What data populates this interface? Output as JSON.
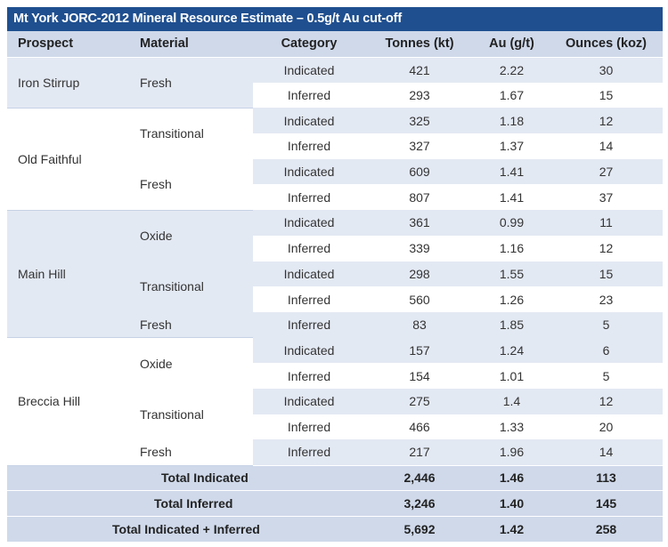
{
  "title": "Mt York JORC-2012 Mineral Resource Estimate – 0.5g/t Au cut-off",
  "headers": [
    "Prospect",
    "Material",
    "Category",
    "Tonnes (kt)",
    "Au (g/t)",
    "Ounces (koz)"
  ],
  "rows": [
    {
      "category": "Indicated",
      "tonnes": "421",
      "au": "2.22",
      "ounces": "30"
    },
    {
      "category": "Inferred",
      "tonnes": "293",
      "au": "1.67",
      "ounces": "15"
    },
    {
      "category": "Indicated",
      "tonnes": "325",
      "au": "1.18",
      "ounces": "12"
    },
    {
      "category": "Inferred",
      "tonnes": "327",
      "au": "1.37",
      "ounces": "14"
    },
    {
      "category": "Indicated",
      "tonnes": "609",
      "au": "1.41",
      "ounces": "27"
    },
    {
      "category": "Inferred",
      "tonnes": "807",
      "au": "1.41",
      "ounces": "37"
    },
    {
      "category": "Indicated",
      "tonnes": "361",
      "au": "0.99",
      "ounces": "11"
    },
    {
      "category": "Inferred",
      "tonnes": "339",
      "au": "1.16",
      "ounces": "12"
    },
    {
      "category": "Indicated",
      "tonnes": "298",
      "au": "1.55",
      "ounces": "15"
    },
    {
      "category": "Inferred",
      "tonnes": "560",
      "au": "1.26",
      "ounces": "23"
    },
    {
      "category": "Inferred",
      "tonnes": "83",
      "au": "1.85",
      "ounces": "5"
    },
    {
      "category": "Indicated",
      "tonnes": "157",
      "au": "1.24",
      "ounces": "6"
    },
    {
      "category": "Inferred",
      "tonnes": "154",
      "au": "1.01",
      "ounces": "5"
    },
    {
      "category": "Indicated",
      "tonnes": "275",
      "au": "1.4",
      "ounces": "12"
    },
    {
      "category": "Inferred",
      "tonnes": "466",
      "au": "1.33",
      "ounces": "20"
    },
    {
      "category": "Inferred",
      "tonnes": "217",
      "au": "1.96",
      "ounces": "14"
    }
  ],
  "prospects": [
    "Iron Stirrup",
    "Old Faithful",
    "Main Hill",
    "Breccia Hill"
  ],
  "materials": [
    "Fresh",
    "Transitional",
    "Fresh",
    "Oxide",
    "Transitional",
    "Fresh",
    "Oxide",
    "Transitional",
    "Fresh"
  ],
  "totals": [
    {
      "label": "Total Indicated",
      "tonnes": "2,446",
      "au": "1.46",
      "ounces": "113"
    },
    {
      "label": "Total Inferred",
      "tonnes": "3,246",
      "au": "1.40",
      "ounces": "145"
    },
    {
      "label": "Total Indicated + Inferred",
      "tonnes": "5,692",
      "au": "1.42",
      "ounces": "258"
    }
  ]
}
